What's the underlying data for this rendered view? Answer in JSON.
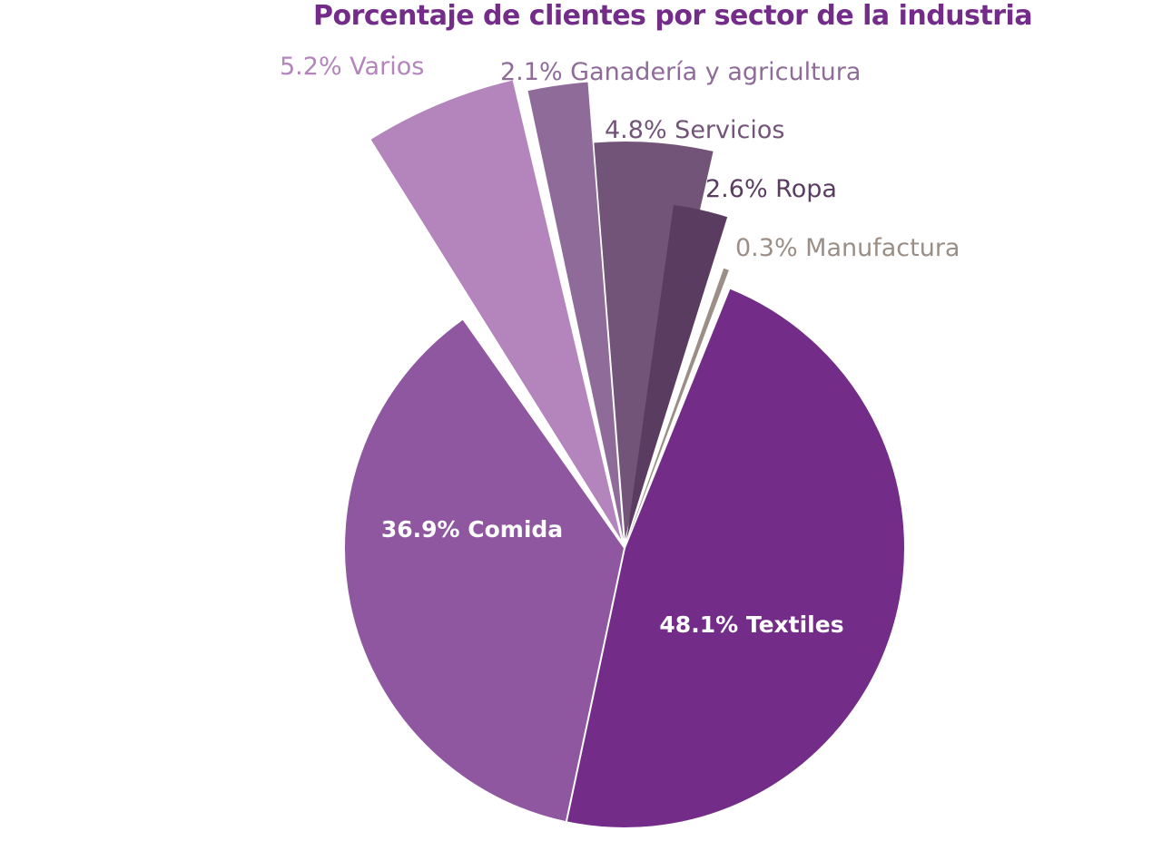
{
  "chart_data": {
    "type": "pie",
    "title": "Porcentaje de clientes por sector de la industria",
    "slices": [
      {
        "label": "Textiles",
        "value": 48.1,
        "display": "48.1% Textiles",
        "color": "#732c88",
        "label_color": "#ffffff",
        "exploded": false
      },
      {
        "label": "Comida",
        "value": 36.9,
        "display": "36.9% Comida",
        "color": "#8e57a0",
        "label_color": "#ffffff",
        "exploded": false
      },
      {
        "label": "Varios",
        "value": 5.2,
        "display": "5.2% Varios",
        "color": "#b484bc",
        "label_color": "#b484bc",
        "exploded": true
      },
      {
        "label": "Ganadería y agricultura",
        "value": 2.1,
        "display": "2.1% Ganadería y agricultura",
        "color": "#8e6b98",
        "label_color": "#8e6b98",
        "exploded": true
      },
      {
        "label": "Servicios",
        "value": 4.8,
        "display": "4.8% Servicios",
        "color": "#735479",
        "label_color": "#735479",
        "exploded": true
      },
      {
        "label": "Ropa",
        "value": 2.6,
        "display": "2.6% Ropa",
        "color": "#5a3c61",
        "label_color": "#5a3c61",
        "exploded": true
      },
      {
        "label": "Manufactura",
        "value": 0.3,
        "display": "0.3% Manufactura",
        "color": "#9a8e86",
        "label_color": "#9a8e86",
        "exploded": true
      }
    ]
  }
}
